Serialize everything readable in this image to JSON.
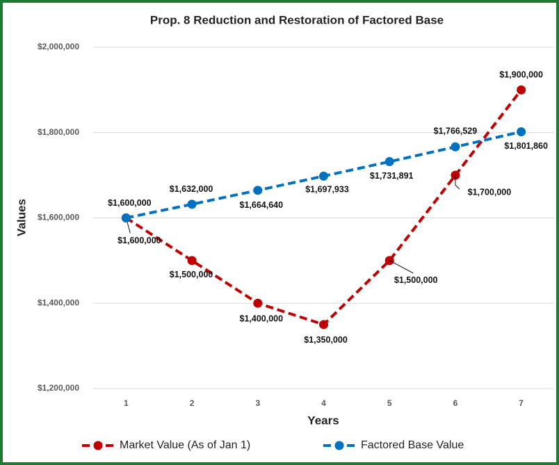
{
  "chart_data": {
    "type": "line",
    "title": "Prop. 8 Reduction and Restoration of Factored Base",
    "x_label": "Years",
    "y_label": "Values",
    "categories": [
      "1",
      "2",
      "3",
      "4",
      "5",
      "6",
      "7"
    ],
    "series": [
      {
        "name": "Market Value (As of Jan 1)",
        "color": "#c00000",
        "values": [
          1600000,
          1500000,
          1400000,
          1350000,
          1500000,
          1700000,
          1900000
        ],
        "value_labels": [
          "$1,600,000",
          "$1,500,000",
          "$1,400,000",
          "$1,350,000",
          "$1,500,000",
          "$1,700,000",
          "$1,900,000"
        ]
      },
      {
        "name": "Factored Base Value",
        "color": "#0070c0",
        "values": [
          1600000,
          1632000,
          1664640,
          1697933,
          1731891,
          1766529,
          1801860
        ],
        "value_labels": [
          "$1,600,000",
          "$1,632,000",
          "$1,664,640",
          "$1,697,933",
          "$1,731,891",
          "$1,766,529",
          "$1,801,860"
        ]
      }
    ],
    "ylim": [
      1200000,
      2000000
    ],
    "yticks": [
      {
        "value": 1200000,
        "label": "$1,200,000"
      },
      {
        "value": 1400000,
        "label": "$1,400,000"
      },
      {
        "value": 1600000,
        "label": "$1,600,000"
      },
      {
        "value": 1800000,
        "label": "$1,800,000"
      },
      {
        "value": 2000000,
        "label": "$2,000,000"
      }
    ],
    "grid": true,
    "legend": "bottom"
  }
}
